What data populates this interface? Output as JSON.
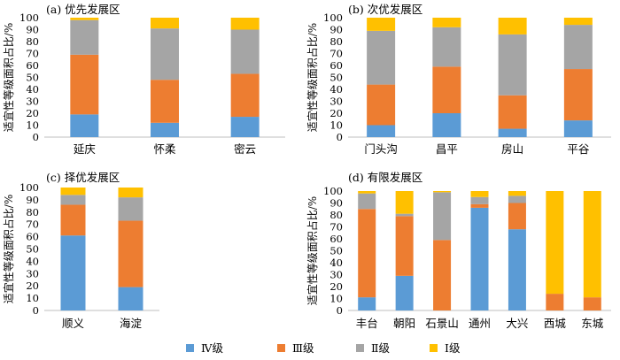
{
  "legend": [
    {
      "label": "Ⅳ级",
      "color": "#5B9BD5"
    },
    {
      "label": "Ⅲ级",
      "color": "#ED7D31"
    },
    {
      "label": "Ⅱ级",
      "color": "#A5A5A5"
    },
    {
      "label": "Ⅰ级",
      "color": "#FFC000"
    }
  ],
  "chart_data": [
    {
      "type": "bar",
      "stacked": true,
      "title": "(a) 优先发展区",
      "ylabel": "适宜性等级面积占比/%",
      "ylim": [
        0,
        100
      ],
      "yticks": [
        0,
        10,
        20,
        30,
        40,
        50,
        60,
        70,
        80,
        90,
        100
      ],
      "categories": [
        "延庆",
        "怀柔",
        "密云"
      ],
      "series": [
        {
          "name": "Ⅳ级",
          "values": [
            19,
            12,
            17
          ]
        },
        {
          "name": "Ⅲ级",
          "values": [
            50,
            36,
            36
          ]
        },
        {
          "name": "Ⅱ级",
          "values": [
            29,
            43,
            37
          ]
        },
        {
          "name": "Ⅰ级",
          "values": [
            2,
            9,
            10
          ]
        }
      ]
    },
    {
      "type": "bar",
      "stacked": true,
      "title": "(b) 次优发展区",
      "ylabel": "适宜性等级面积占比/%",
      "ylim": [
        0,
        100
      ],
      "yticks": [
        0,
        10,
        20,
        30,
        40,
        50,
        60,
        70,
        80,
        90,
        100
      ],
      "categories": [
        "门头沟",
        "昌平",
        "房山",
        "平谷"
      ],
      "series": [
        {
          "name": "Ⅳ级",
          "values": [
            10,
            20,
            7,
            14
          ]
        },
        {
          "name": "Ⅲ级",
          "values": [
            34,
            39,
            28,
            43
          ]
        },
        {
          "name": "Ⅱ级",
          "values": [
            45,
            33,
            51,
            37
          ]
        },
        {
          "name": "Ⅰ级",
          "values": [
            11,
            8,
            14,
            6
          ]
        }
      ]
    },
    {
      "type": "bar",
      "stacked": true,
      "title": "(c) 择优发展区",
      "ylabel": "适宜性等级面积占比/%",
      "ylim": [
        0,
        100
      ],
      "yticks": [
        0,
        10,
        20,
        30,
        40,
        50,
        60,
        70,
        80,
        90,
        100
      ],
      "categories": [
        "顺义",
        "海淀"
      ],
      "series": [
        {
          "name": "Ⅳ级",
          "values": [
            61,
            19
          ]
        },
        {
          "name": "Ⅲ级",
          "values": [
            25,
            54
          ]
        },
        {
          "name": "Ⅱ级",
          "values": [
            8,
            19
          ]
        },
        {
          "name": "Ⅰ级",
          "values": [
            6,
            8
          ]
        }
      ]
    },
    {
      "type": "bar",
      "stacked": true,
      "title": "(d) 有限发展区",
      "ylabel": "适宜性等级面积占比/%",
      "ylim": [
        0,
        100
      ],
      "yticks": [
        0,
        10,
        20,
        30,
        40,
        50,
        60,
        70,
        80,
        90,
        100
      ],
      "categories": [
        "丰台",
        "朝阳",
        "石景山",
        "通州",
        "大兴",
        "西城",
        "东城"
      ],
      "series": [
        {
          "name": "Ⅳ级",
          "values": [
            11,
            29,
            0,
            86,
            68,
            0,
            0
          ]
        },
        {
          "name": "Ⅲ级",
          "values": [
            74,
            50,
            59,
            3,
            22,
            14,
            11
          ]
        },
        {
          "name": "Ⅱ级",
          "values": [
            13,
            2,
            40,
            6,
            6,
            0,
            0
          ]
        },
        {
          "name": "Ⅰ级",
          "values": [
            2,
            19,
            1,
            5,
            4,
            86,
            89
          ]
        }
      ]
    }
  ]
}
